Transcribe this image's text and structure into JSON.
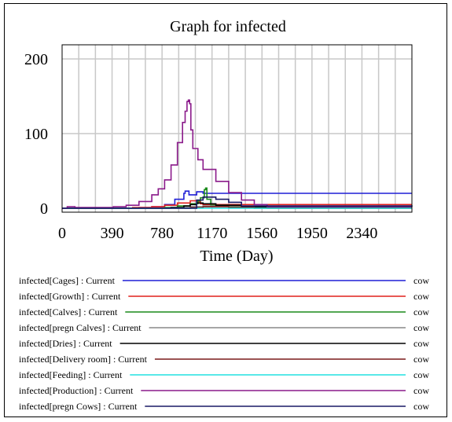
{
  "chart_data": {
    "type": "line",
    "title": "Graph for infected",
    "xlabel": "Time (Day)",
    "ylabel": "",
    "xlim": [
      0,
      2730
    ],
    "ylim": [
      0,
      200
    ],
    "x_ticks": [
      "0",
      "390",
      "780",
      "1170",
      "1560",
      "1950",
      "2340"
    ],
    "y_ticks": [
      "200",
      "100",
      "0"
    ],
    "grid": true,
    "legend_position": "bottom",
    "series": [
      {
        "name": "infected[Cages] : Current",
        "unit": "cow",
        "color": "#1f1fd6",
        "x": [
          0,
          30,
          60,
          350,
          500,
          600,
          700,
          800,
          880,
          950,
          960,
          990,
          1050,
          1100,
          1150,
          1170,
          2730
        ],
        "y": [
          0,
          0,
          0,
          0,
          0,
          1,
          2,
          5,
          12,
          20,
          23,
          18,
          22,
          20,
          20,
          20,
          20
        ]
      },
      {
        "name": "infected[Growth] : Current",
        "unit": "cow",
        "color": "#e0201d",
        "x": [
          0,
          350,
          550,
          700,
          800,
          900,
          1000,
          1050,
          1080,
          1100,
          2730
        ],
        "y": [
          0,
          0,
          1,
          2,
          4,
          7,
          10,
          9,
          6,
          5,
          5
        ]
      },
      {
        "name": "infected[Calves] : Current",
        "unit": "cow",
        "color": "#1a8a1a",
        "x": [
          0,
          600,
          800,
          900,
          1000,
          1060,
          1080,
          1110,
          1120,
          1130,
          1160,
          1300,
          1500,
          2730
        ],
        "y": [
          0,
          0,
          1,
          3,
          6,
          10,
          14,
          25,
          27,
          12,
          4,
          2,
          1,
          1
        ]
      },
      {
        "name": "infected[pregn Calves] : Current",
        "unit": "cow",
        "color": "#888888",
        "x": [
          0,
          700,
          900,
          1000,
          1100,
          1200,
          1400,
          1600,
          2730
        ],
        "y": [
          0,
          0,
          1,
          2,
          3,
          3,
          2,
          1,
          1
        ]
      },
      {
        "name": "infected[Dries] : Current",
        "unit": "cow",
        "color": "#000000",
        "x": [
          0,
          700,
          850,
          950,
          1000,
          1050,
          1100,
          1200,
          1400,
          1600,
          2730
        ],
        "y": [
          0,
          0,
          1,
          3,
          5,
          7,
          6,
          4,
          2,
          1,
          1
        ]
      },
      {
        "name": "infected[Delivery room] : Current",
        "unit": "cow",
        "color": "#7a1a1a",
        "x": [
          0,
          800,
          1000,
          1100,
          1300,
          1500,
          2730
        ],
        "y": [
          0,
          0,
          1,
          2,
          1,
          0,
          0
        ]
      },
      {
        "name": "infected[Feeding] : Current",
        "unit": "cow",
        "color": "#22e0e0",
        "x": [
          0,
          2730
        ],
        "y": [
          0,
          0
        ]
      },
      {
        "name": "infected[Production] : Current",
        "unit": "cow",
        "color": "#8a1a8a",
        "x": [
          0,
          20,
          40,
          100,
          300,
          400,
          500,
          600,
          700,
          750,
          800,
          850,
          900,
          940,
          960,
          975,
          985,
          995,
          1005,
          1020,
          1060,
          1100,
          1200,
          1300,
          1400,
          1500,
          1600,
          2730
        ],
        "y": [
          0,
          0,
          2,
          1,
          1,
          2,
          4,
          9,
          18,
          26,
          38,
          58,
          88,
          115,
          130,
          143,
          145,
          140,
          105,
          80,
          65,
          52,
          36,
          21,
          11,
          5,
          2,
          2
        ]
      },
      {
        "name": "infected[pregn Cows] : Current",
        "unit": "cow",
        "color": "#1a1a66",
        "x": [
          0,
          1000,
          1050,
          1100,
          1200,
          1300,
          1400,
          2730
        ],
        "y": [
          0,
          0,
          11,
          15,
          12,
          8,
          3,
          2
        ]
      }
    ]
  }
}
